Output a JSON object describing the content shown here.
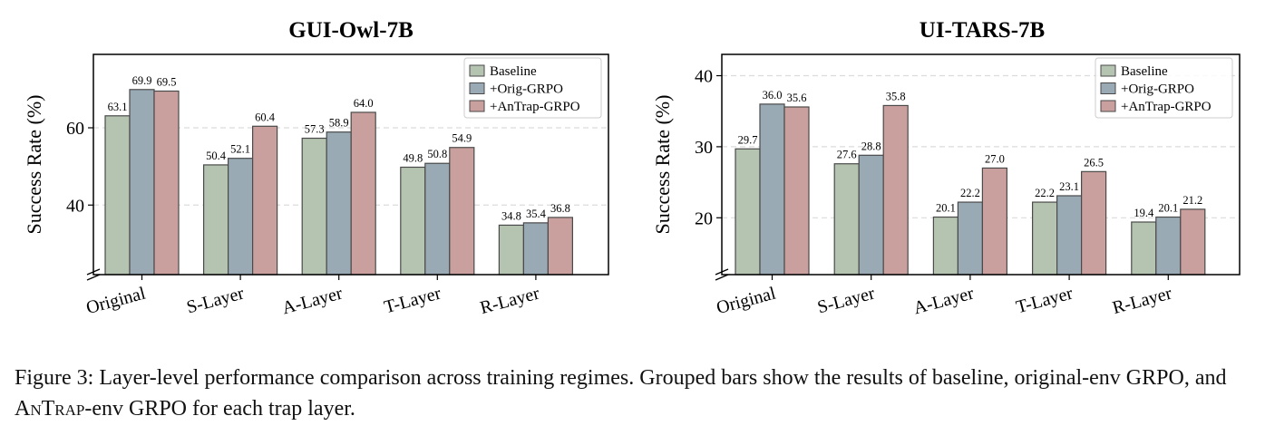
{
  "chart_data": [
    {
      "type": "bar",
      "title": "GUI-Owl-7B",
      "xlabel": "",
      "ylabel": "Success Rate (%)",
      "categories": [
        "Original",
        "S-Layer",
        "A-Layer",
        "T-Layer",
        "R-Layer"
      ],
      "series": [
        {
          "name": "Baseline",
          "values": [
            63.1,
            50.4,
            57.3,
            49.8,
            34.8
          ],
          "color": "#b5c4b1"
        },
        {
          "name": "+Orig-GRPO",
          "values": [
            69.9,
            52.1,
            58.9,
            50.8,
            35.4
          ],
          "color": "#99aab5"
        },
        {
          "name": "+AnTrap-GRPO",
          "values": [
            69.5,
            60.4,
            64.0,
            54.9,
            36.8
          ],
          "color": "#c9a09e"
        }
      ],
      "ylim": [
        22,
        79
      ],
      "yticks": [
        40,
        60
      ],
      "axis_break": true,
      "grid": "horizontal dashed",
      "legend": "top-right"
    },
    {
      "type": "bar",
      "title": "UI-TARS-7B",
      "xlabel": "",
      "ylabel": "Success Rate (%)",
      "categories": [
        "Original",
        "S-Layer",
        "A-Layer",
        "T-Layer",
        "R-Layer"
      ],
      "series": [
        {
          "name": "Baseline",
          "values": [
            29.7,
            27.6,
            20.1,
            22.2,
            19.4
          ],
          "color": "#b5c4b1"
        },
        {
          "name": "+Orig-GRPO",
          "values": [
            36.0,
            28.8,
            22.2,
            23.1,
            20.1
          ],
          "color": "#99aab5"
        },
        {
          "name": "+AnTrap-GRPO",
          "values": [
            35.6,
            35.8,
            27.0,
            26.5,
            21.2
          ],
          "color": "#c9a09e"
        }
      ],
      "ylim": [
        12,
        43
      ],
      "yticks": [
        20,
        30,
        40
      ],
      "axis_break": true,
      "grid": "horizontal dashed",
      "legend": "top-right"
    }
  ],
  "caption": {
    "text_before": "Figure 3: Layer-level performance comparison across training regimes. Grouped bars show the results of baseline, original-env GRPO, and ",
    "small_caps": "AnTrap",
    "text_after": "-env GRPO for each trap layer."
  }
}
